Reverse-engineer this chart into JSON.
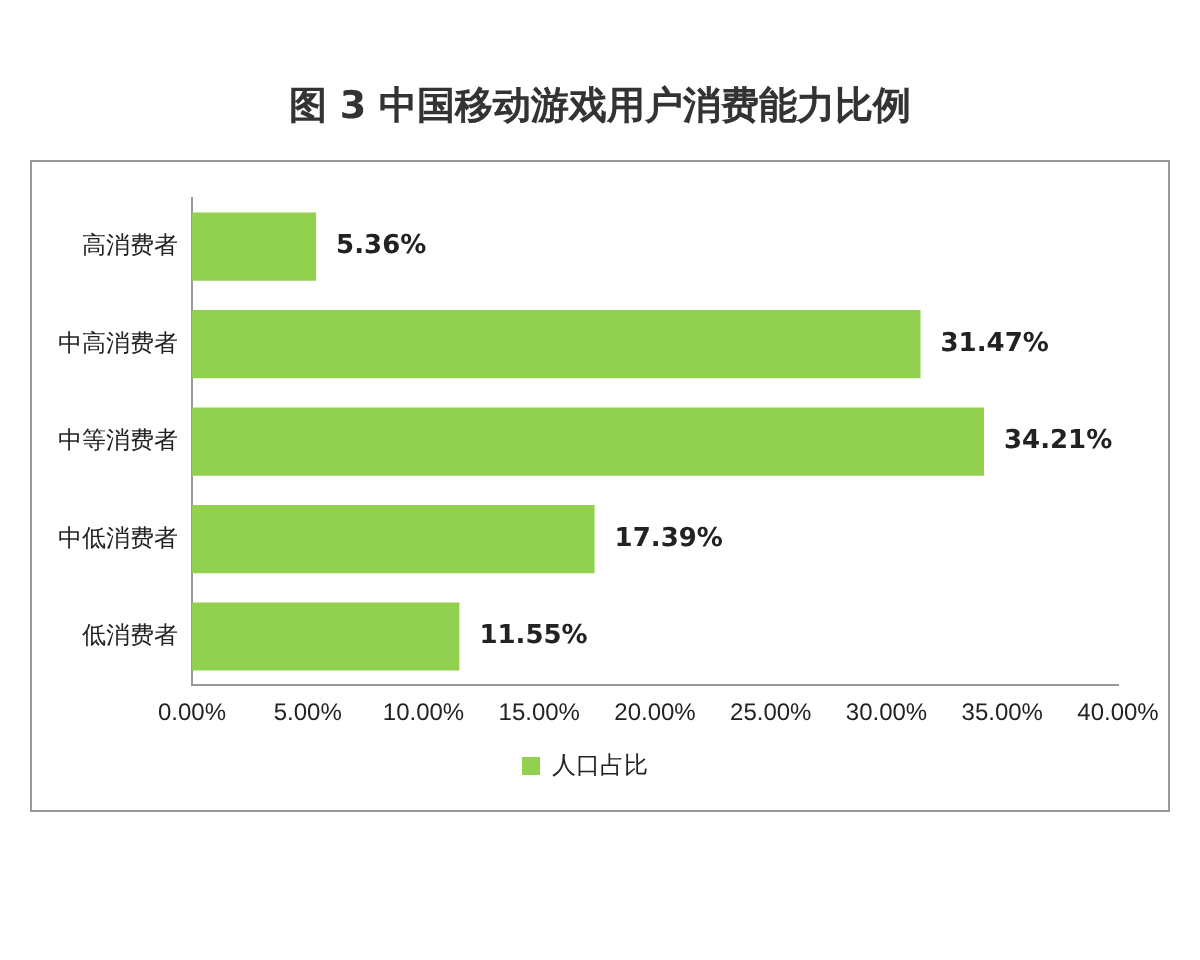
{
  "chart_data": {
    "type": "bar",
    "orientation": "horizontal",
    "title": "图 3  中国移动游戏用户消费能力比例",
    "categories": [
      "高消费者",
      "中高消费者",
      "中等消费者",
      "中低消费者",
      "低消费者"
    ],
    "series": [
      {
        "name": "人口占比",
        "color": "#92d050",
        "values": [
          5.36,
          31.47,
          34.21,
          17.39,
          11.55
        ]
      }
    ],
    "value_labels": [
      "5.36%",
      "31.47%",
      "34.21%",
      "17.39%",
      "11.55%"
    ],
    "xlim": [
      0,
      40
    ],
    "xticks": [
      {
        "value": 0,
        "label": "0.00%"
      },
      {
        "value": 5,
        "label": "5.00%"
      },
      {
        "value": 10,
        "label": "10.00%"
      },
      {
        "value": 15,
        "label": "15.00%"
      },
      {
        "value": 20,
        "label": "20.00%"
      },
      {
        "value": 25,
        "label": "25.00%"
      },
      {
        "value": 30,
        "label": "30.00%"
      },
      {
        "value": 35,
        "label": "35.00%"
      },
      {
        "value": 40,
        "label": "40.00%"
      }
    ],
    "grid": false,
    "legend": "bottom"
  }
}
